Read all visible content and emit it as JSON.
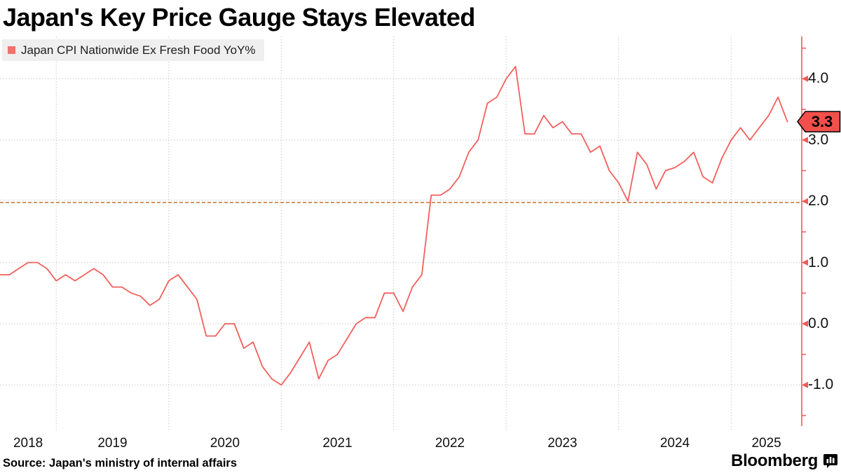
{
  "title": "Japan's Key Price Gauge Stays Elevated",
  "legend": {
    "label": "Japan CPI Nationwide Ex Fresh Food YoY%"
  },
  "source": "Source: Japan's ministry of internal affairs",
  "branding": {
    "wordmark": "Bloomberg"
  },
  "last_point": {
    "label": "3.3",
    "value": 3.3
  },
  "colors": {
    "line": "#f2605d",
    "axis": "#ee5a57",
    "badge_bg": "#f4504b",
    "badge_border": "#000000",
    "grid": "#c9c9c9",
    "target_line": "#c2702e",
    "legend_swatch": "#f4716b",
    "legend_bg": "#efefef",
    "text": "#111111"
  },
  "y_axis": {
    "ticks": [
      {
        "value": 4.0,
        "label": "4.0"
      },
      {
        "value": 3.0,
        "label": "3.0"
      },
      {
        "value": 2.0,
        "label": "2.0"
      },
      {
        "value": 1.0,
        "label": "1.0"
      },
      {
        "value": 0.0,
        "label": "0.0"
      },
      {
        "value": -1.0,
        "label": "-1.0"
      }
    ],
    "minor_tick_values": [
      4.5,
      3.5,
      2.5,
      1.5,
      0.5,
      -0.5,
      -1.5
    ]
  },
  "x_axis": {
    "year_labels": [
      "2018",
      "2019",
      "2020",
      "2021",
      "2022",
      "2023",
      "2024",
      "2025"
    ]
  },
  "chart_data": {
    "type": "line",
    "title": "Japan's Key Price Gauge Stays Elevated",
    "ylabel": "YoY %",
    "ylim": [
      -1.7,
      4.7
    ],
    "grid": true,
    "legend_position": "top-left",
    "target_line": {
      "value": 2.0
    },
    "series": [
      {
        "name": "Japan CPI Nationwide Ex Fresh Food YoY%",
        "frequency": "monthly",
        "start": "2018-06",
        "end": "2025-06",
        "values": [
          0.8,
          0.8,
          0.9,
          1.0,
          1.0,
          0.9,
          0.7,
          0.8,
          0.7,
          0.8,
          0.9,
          0.8,
          0.6,
          0.6,
          0.5,
          0.45,
          0.3,
          0.4,
          0.7,
          0.8,
          0.6,
          0.4,
          -0.2,
          -0.2,
          0.0,
          0.0,
          -0.4,
          -0.3,
          -0.7,
          -0.9,
          -1.0,
          -0.8,
          -0.55,
          -0.3,
          -0.9,
          -0.6,
          -0.5,
          -0.25,
          0.0,
          0.1,
          0.1,
          0.5,
          0.5,
          0.2,
          0.6,
          0.8,
          2.1,
          2.1,
          2.2,
          2.4,
          2.8,
          3.0,
          3.6,
          3.7,
          4.0,
          4.2,
          3.1,
          3.1,
          3.4,
          3.2,
          3.3,
          3.1,
          3.1,
          2.8,
          2.9,
          2.5,
          2.3,
          2.0,
          2.8,
          2.6,
          2.2,
          2.5,
          2.55,
          2.65,
          2.8,
          2.4,
          2.3,
          2.7,
          3.0,
          3.2,
          3.0,
          3.2,
          3.4,
          3.7,
          3.3
        ]
      }
    ]
  }
}
